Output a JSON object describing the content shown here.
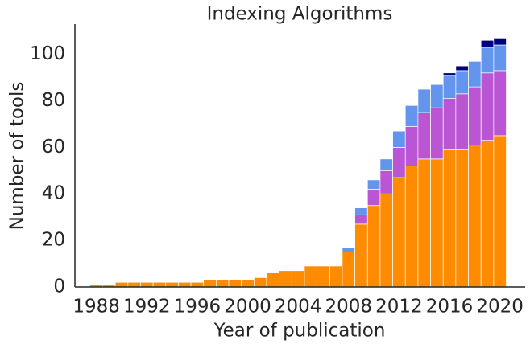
{
  "chart_data": {
    "type": "stacked_bar",
    "title": "Indexing Algorithms",
    "x_label": "Year of publication",
    "y_label": "Number of tools",
    "x": [
      1988,
      1989,
      1990,
      1991,
      1992,
      1993,
      1994,
      1995,
      1996,
      1997,
      1998,
      1999,
      2000,
      2001,
      2002,
      2003,
      2004,
      2005,
      2006,
      2007,
      2008,
      2009,
      2010,
      2011,
      2012,
      2013,
      2014,
      2015,
      2016,
      2017,
      2018,
      2019,
      2020
    ],
    "series": [
      {
        "color": "#ff8c00",
        "values": [
          1,
          1,
          2,
          2,
          2,
          2,
          2,
          2,
          2,
          3,
          3,
          3,
          3,
          4,
          6,
          7,
          7,
          9,
          9,
          9,
          15,
          27,
          35,
          40,
          47,
          52,
          55,
          55,
          59,
          59,
          61,
          63,
          65
        ]
      },
      {
        "color": "#ba55d3",
        "values": [
          0,
          0,
          0,
          0,
          0,
          0,
          0,
          0,
          0,
          0,
          0,
          0,
          0,
          0,
          0,
          0,
          0,
          0,
          0,
          0,
          0,
          4,
          7,
          10,
          13,
          17,
          20,
          22,
          22,
          24,
          25,
          29,
          28
        ]
      },
      {
        "color": "#6495ed",
        "values": [
          0,
          0,
          0,
          0,
          0,
          0,
          0,
          0,
          0,
          0,
          0,
          0,
          0,
          0,
          0,
          0,
          0,
          0,
          0,
          0,
          2,
          3,
          4,
          5,
          7,
          9,
          10,
          10,
          10,
          10,
          11,
          11,
          11
        ]
      },
      {
        "color": "#000080",
        "values": [
          0,
          0,
          0,
          0,
          0,
          0,
          0,
          0,
          0,
          0,
          0,
          0,
          0,
          0,
          0,
          0,
          0,
          0,
          0,
          0,
          0,
          0,
          0,
          0,
          0,
          0,
          0,
          0,
          1,
          2,
          0,
          3,
          3
        ]
      }
    ],
    "xlim": [
      1986.3,
      2022
    ],
    "ylim": [
      0,
      113
    ],
    "xticks": [
      1988,
      1992,
      1996,
      2000,
      2004,
      2008,
      2012,
      2016,
      2020
    ],
    "yticks": [
      0,
      20,
      40,
      60,
      80,
      100
    ],
    "grid": false
  }
}
